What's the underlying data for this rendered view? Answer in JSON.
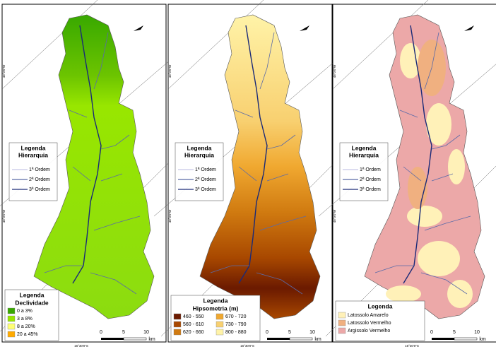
{
  "panels": [
    {
      "fill": "pct",
      "hierarchy": {
        "title": "Legenda",
        "subtitle": "Hierarquia",
        "items": [
          {
            "label": "1ª Ordem",
            "color": "#c8c8e8"
          },
          {
            "label": "2ª Ordem",
            "color": "#5a6aa8"
          },
          {
            "label": "3ª Ordem",
            "color": "#1a2a78"
          }
        ]
      },
      "legend": {
        "title": "Legenda",
        "subtitle": "Declividade",
        "items": [
          {
            "label": "0 a 3%",
            "color": "#38a800"
          },
          {
            "label": "3 a 8%",
            "color": "#98e600"
          },
          {
            "label": "8 a 20%",
            "color": "#ffff73"
          },
          {
            "label": "20 a 45%",
            "color": "#ffaa00"
          }
        ]
      },
      "scale": [
        "0",
        "5",
        "10",
        "km"
      ],
      "side_labels": [
        "48°0'0\"W",
        "48°0'0\"W"
      ],
      "bottom_label": "16°30'0\"S"
    },
    {
      "fill": "hyp",
      "hierarchy": {
        "title": "Legenda",
        "subtitle": "Hierarquia",
        "items": [
          {
            "label": "1ª Ordem",
            "color": "#c8c8e8"
          },
          {
            "label": "2ª Ordem",
            "color": "#5a6aa8"
          },
          {
            "label": "3ª Ordem",
            "color": "#1a2a78"
          }
        ]
      },
      "legend": {
        "title": "Legenda",
        "subtitle": "Hipsometria (m)",
        "items": [
          {
            "label": "460 - 550",
            "color": "#6b1a00"
          },
          {
            "label": "560 - 610",
            "color": "#a84800"
          },
          {
            "label": "620 - 660",
            "color": "#d07a10"
          },
          {
            "label": "670 - 720",
            "color": "#f0a830"
          },
          {
            "label": "730 - 790",
            "color": "#f8d070"
          },
          {
            "label": "800 - 880",
            "color": "#fff3a8"
          }
        ]
      },
      "scale": [
        "0",
        "5",
        "10",
        "km"
      ],
      "side_labels": [
        "48°0'0\"W",
        "48°0'0\"W"
      ],
      "bottom_label": "16°30'0\"S"
    },
    {
      "fill": "soil",
      "hierarchy": {
        "title": "Legenda",
        "subtitle": "Hierarquia",
        "items": [
          {
            "label": "1ª Ordem",
            "color": "#c8c8e8"
          },
          {
            "label": "2ª Ordem",
            "color": "#5a6aa8"
          },
          {
            "label": "3ª Ordem",
            "color": "#1a2a78"
          }
        ]
      },
      "legend": {
        "title": "Legenda",
        "items": [
          {
            "label": "Latossolo Amarelo",
            "color": "#fff1b8"
          },
          {
            "label": "Latossolo Vermelho",
            "color": "#f0b080"
          },
          {
            "label": "Argissolo Vermelho",
            "color": "#eca8a8"
          }
        ]
      },
      "scale": [
        "0",
        "5",
        "10",
        "km"
      ],
      "side_labels": [
        "48°0'0\"W",
        "48°0'0\"W"
      ],
      "bottom_label": "16°30'0\"S"
    }
  ]
}
